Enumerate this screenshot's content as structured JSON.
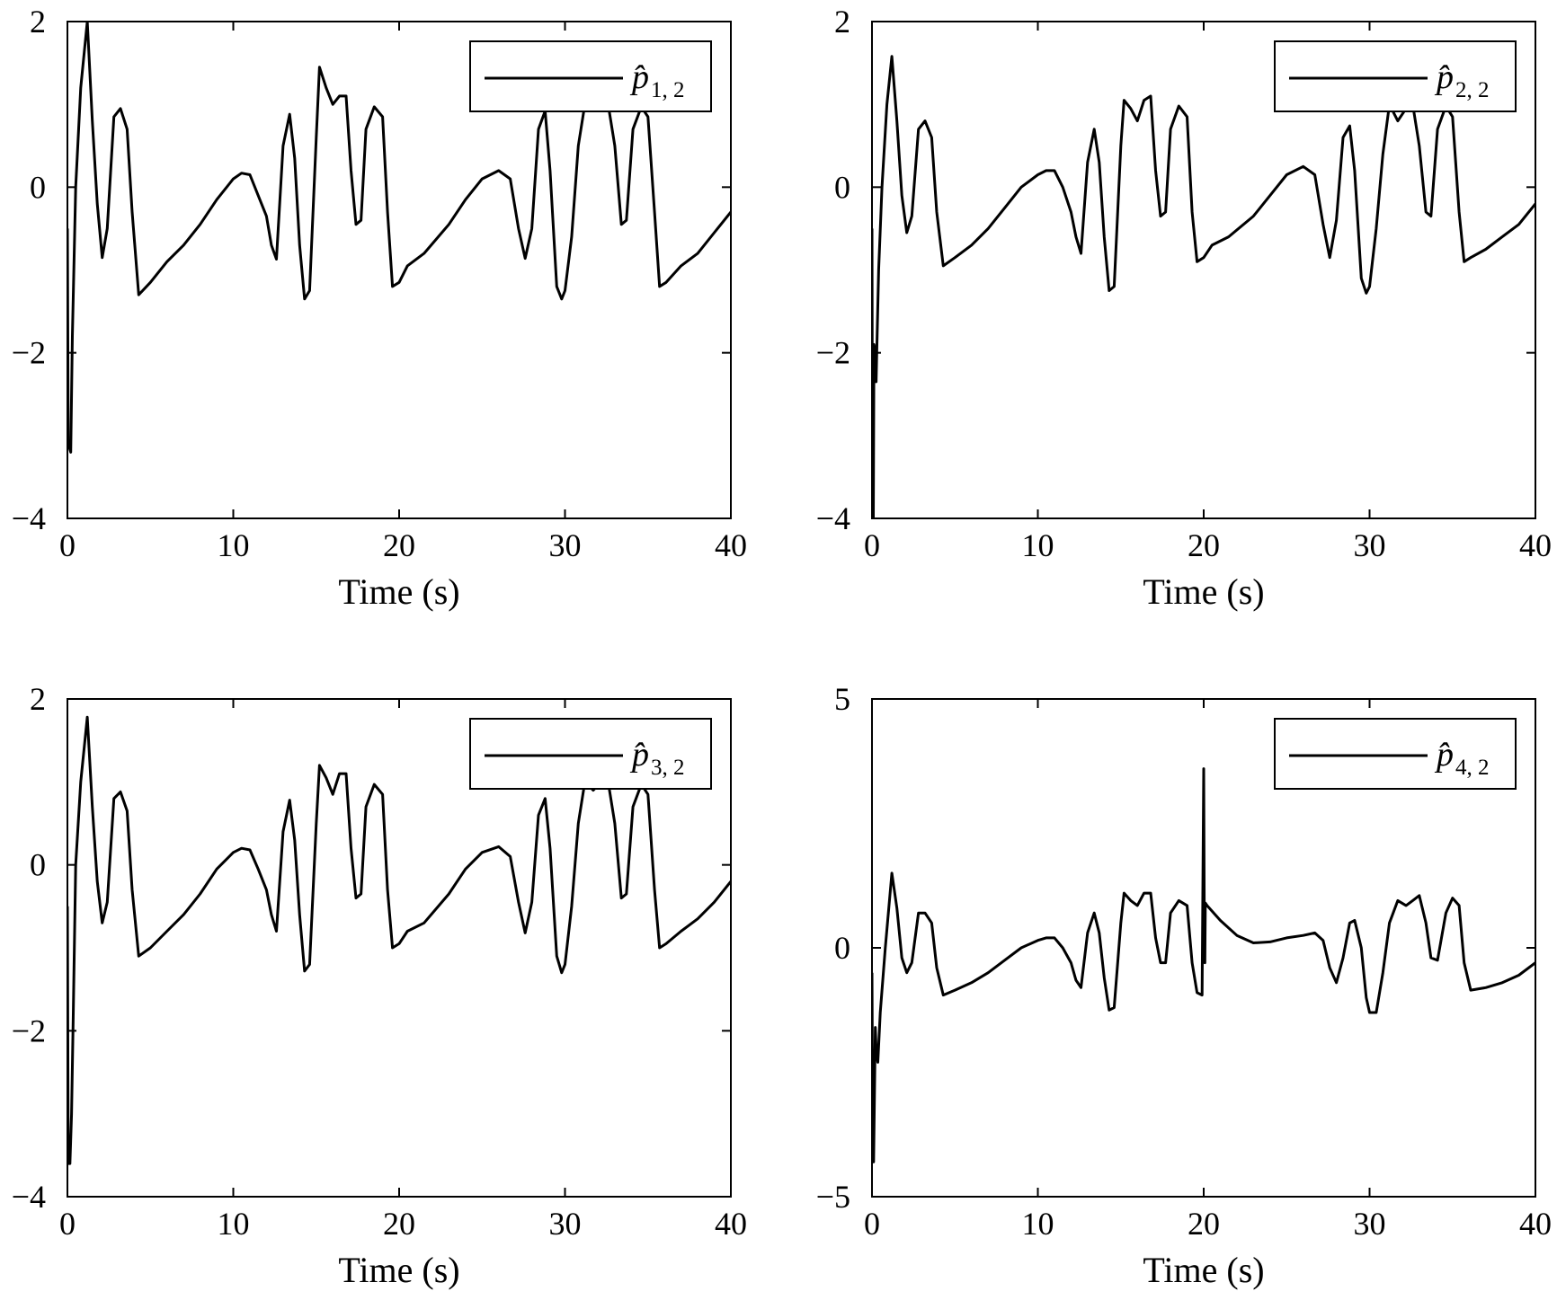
{
  "chart_data": [
    {
      "type": "line",
      "xlabel": "Time (s)",
      "xlim": [
        0,
        40
      ],
      "ylim": [
        -4,
        2
      ],
      "xticks": [
        "0",
        "10",
        "20",
        "30",
        "40"
      ],
      "yticks": [
        "−4",
        "−2",
        "0",
        "2"
      ],
      "legend_placement": "top-right",
      "series": [
        {
          "name": "p̂ 1, 2",
          "legend_symbol": "p̂",
          "legend_subscript": "1, 2",
          "color": "#000000",
          "x": [
            0,
            0.05,
            0.2,
            0.3,
            0.5,
            0.8,
            1.2,
            1.5,
            1.8,
            2.1,
            2.4,
            2.8,
            3.2,
            3.6,
            3.9,
            4.3,
            5,
            6,
            7,
            8,
            9,
            10,
            10.5,
            11,
            11.5,
            12,
            12.3,
            12.6,
            13.0,
            13.4,
            13.7,
            14.0,
            14.3,
            14.6,
            15.0,
            15.2,
            15.6,
            16.0,
            16.4,
            16.8,
            17.1,
            17.4,
            17.7,
            18.0,
            18.5,
            19.0,
            19.3,
            19.6,
            20.0,
            20.5,
            21.5,
            23,
            24,
            25,
            26,
            26.7,
            27.2,
            27.6,
            28.0,
            28.4,
            28.8,
            29.1,
            29.5,
            29.8,
            30.0,
            30.4,
            30.8,
            31.2,
            31.7,
            32.2,
            32.6,
            33.0,
            33.4,
            33.7,
            34.1,
            34.6,
            35.0,
            35.4,
            35.7,
            36.1,
            37,
            38,
            39,
            40
          ],
          "y": [
            -0.5,
            -3.1,
            -3.2,
            -1.8,
            0,
            1.2,
            2.0,
            0.8,
            -0.2,
            -0.85,
            -0.5,
            0.85,
            0.95,
            0.7,
            -0.3,
            -1.3,
            -1.15,
            -0.9,
            -0.7,
            -0.45,
            -0.15,
            0.1,
            0.17,
            0.15,
            -0.1,
            -0.35,
            -0.7,
            -0.87,
            0.5,
            0.88,
            0.35,
            -0.7,
            -1.35,
            -1.25,
            0.6,
            1.45,
            1.2,
            1.0,
            1.1,
            1.1,
            0.2,
            -0.45,
            -0.4,
            0.7,
            0.97,
            0.85,
            -0.3,
            -1.2,
            -1.15,
            -0.95,
            -0.8,
            -0.45,
            -0.15,
            0.1,
            0.2,
            0.1,
            -0.5,
            -0.86,
            -0.5,
            0.7,
            0.92,
            0.2,
            -1.2,
            -1.35,
            -1.25,
            -0.6,
            0.5,
            1.0,
            1.0,
            1.0,
            1.0,
            0.5,
            -0.45,
            -0.4,
            0.7,
            0.97,
            0.85,
            -0.3,
            -1.2,
            -1.15,
            -0.95,
            -0.8,
            -0.55,
            -0.3
          ]
        }
      ]
    },
    {
      "type": "line",
      "xlabel": "Time (s)",
      "xlim": [
        0,
        40
      ],
      "ylim": [
        -4,
        2
      ],
      "xticks": [
        "0",
        "10",
        "20",
        "30",
        "40"
      ],
      "yticks": [
        "−4",
        "−2",
        "0",
        "2"
      ],
      "legend_placement": "top-right",
      "series": [
        {
          "name": "p̂ 2, 2",
          "legend_symbol": "p̂",
          "legend_subscript": "2, 2",
          "color": "#000000",
          "x": [
            0,
            0.03,
            0.08,
            0.12,
            0.2,
            0.25,
            0.3,
            0.4,
            0.6,
            0.9,
            1.2,
            1.5,
            1.8,
            2.1,
            2.4,
            2.8,
            3.2,
            3.6,
            3.9,
            4.3,
            5,
            6,
            7,
            8,
            9,
            10,
            10.5,
            11,
            11.5,
            12,
            12.3,
            12.6,
            13.0,
            13.4,
            13.7,
            14.0,
            14.3,
            14.6,
            15.0,
            15.2,
            15.6,
            16.0,
            16.4,
            16.8,
            17.1,
            17.4,
            17.7,
            18.0,
            18.5,
            19.0,
            19.3,
            19.6,
            20.0,
            20.5,
            21.5,
            23,
            24,
            25,
            26,
            26.7,
            27.2,
            27.6,
            28.0,
            28.4,
            28.8,
            29.1,
            29.5,
            29.8,
            30.0,
            30.4,
            30.8,
            31.2,
            31.7,
            32.2,
            32.6,
            33.0,
            33.4,
            33.7,
            34.1,
            34.6,
            35.0,
            35.4,
            35.7,
            36.1,
            37,
            38,
            39,
            40
          ],
          "y": [
            -0.5,
            -4.0,
            -4.0,
            -1.9,
            -2.0,
            -2.35,
            -1.9,
            -1.0,
            0,
            1.0,
            1.58,
            0.8,
            -0.1,
            -0.55,
            -0.35,
            0.7,
            0.8,
            0.6,
            -0.3,
            -0.95,
            -0.85,
            -0.7,
            -0.5,
            -0.25,
            0,
            0.15,
            0.2,
            0.2,
            0,
            -0.3,
            -0.6,
            -0.8,
            0.3,
            0.7,
            0.3,
            -0.6,
            -1.25,
            -1.2,
            0.5,
            1.05,
            0.95,
            0.8,
            1.05,
            1.1,
            0.2,
            -0.35,
            -0.3,
            0.7,
            0.98,
            0.85,
            -0.3,
            -0.9,
            -0.85,
            -0.7,
            -0.6,
            -0.35,
            -0.1,
            0.15,
            0.25,
            0.15,
            -0.45,
            -0.85,
            -0.4,
            0.6,
            0.74,
            0.2,
            -1.1,
            -1.28,
            -1.2,
            -0.5,
            0.4,
            1.0,
            0.8,
            0.95,
            1.0,
            0.5,
            -0.3,
            -0.35,
            0.7,
            0.98,
            0.85,
            -0.3,
            -0.9,
            -0.85,
            -0.75,
            -0.6,
            -0.45,
            -0.2
          ]
        }
      ]
    },
    {
      "type": "line",
      "xlabel": "Time (s)",
      "xlim": [
        0,
        40
      ],
      "ylim": [
        -4,
        2
      ],
      "xticks": [
        "0",
        "10",
        "20",
        "30",
        "40"
      ],
      "yticks": [
        "−4",
        "−2",
        "0",
        "2"
      ],
      "legend_placement": "top-right",
      "series": [
        {
          "name": "p̂ 3, 2",
          "legend_symbol": "p̂",
          "legend_subscript": "3, 2",
          "color": "#000000",
          "x": [
            0,
            0.05,
            0.15,
            0.25,
            0.35,
            0.5,
            0.8,
            1.2,
            1.5,
            1.8,
            2.1,
            2.4,
            2.8,
            3.2,
            3.6,
            3.9,
            4.3,
            5,
            6,
            7,
            8,
            9,
            10,
            10.5,
            11,
            11.5,
            12,
            12.3,
            12.6,
            13.0,
            13.4,
            13.7,
            14.0,
            14.3,
            14.6,
            15.0,
            15.2,
            15.6,
            16.0,
            16.4,
            16.8,
            17.1,
            17.4,
            17.7,
            18.0,
            18.5,
            19.0,
            19.3,
            19.6,
            20.0,
            20.5,
            21.5,
            23,
            24,
            25,
            26,
            26.7,
            27.2,
            27.6,
            28.0,
            28.4,
            28.8,
            29.1,
            29.5,
            29.8,
            30.0,
            30.4,
            30.8,
            31.2,
            31.7,
            32.2,
            32.6,
            33.0,
            33.4,
            33.7,
            34.1,
            34.6,
            35.0,
            35.4,
            35.7,
            36.1,
            37,
            38,
            39,
            40
          ],
          "y": [
            -0.5,
            -3.6,
            -3.6,
            -3.0,
            -1.8,
            0,
            1.0,
            1.78,
            0.7,
            -0.2,
            -0.7,
            -0.45,
            0.8,
            0.88,
            0.65,
            -0.3,
            -1.1,
            -1.0,
            -0.8,
            -0.6,
            -0.35,
            -0.05,
            0.15,
            0.2,
            0.18,
            -0.05,
            -0.3,
            -0.6,
            -0.8,
            0.4,
            0.78,
            0.3,
            -0.6,
            -1.28,
            -1.2,
            0.5,
            1.2,
            1.05,
            0.85,
            1.1,
            1.1,
            0.2,
            -0.4,
            -0.35,
            0.7,
            0.97,
            0.85,
            -0.3,
            -1.0,
            -0.95,
            -0.8,
            -0.7,
            -0.35,
            -0.05,
            0.15,
            0.22,
            0.1,
            -0.45,
            -0.82,
            -0.45,
            0.6,
            0.8,
            0.2,
            -1.1,
            -1.3,
            -1.2,
            -0.5,
            0.5,
            1.0,
            0.9,
            1.0,
            1.0,
            0.5,
            -0.4,
            -0.35,
            0.7,
            0.97,
            0.85,
            -0.3,
            -1.0,
            -0.95,
            -0.8,
            -0.65,
            -0.45,
            -0.2
          ]
        }
      ]
    },
    {
      "type": "line",
      "xlabel": "Time (s)",
      "xlim": [
        0,
        40
      ],
      "ylim": [
        -5,
        5
      ],
      "xticks": [
        "0",
        "10",
        "20",
        "30",
        "40"
      ],
      "yticks": [
        "−5",
        "0",
        "5"
      ],
      "legend_placement": "top-right",
      "series": [
        {
          "name": "p̂ 4, 2",
          "legend_symbol": "p̂",
          "legend_subscript": "4, 2",
          "color": "#000000",
          "x": [
            0,
            0.05,
            0.1,
            0.2,
            0.25,
            0.35,
            0.5,
            0.8,
            1.2,
            1.5,
            1.8,
            2.1,
            2.4,
            2.8,
            3.2,
            3.6,
            3.9,
            4.3,
            5,
            6,
            7,
            8,
            9,
            10,
            10.5,
            11,
            11.5,
            12,
            12.3,
            12.6,
            13.0,
            13.4,
            13.7,
            14.0,
            14.3,
            14.6,
            15.0,
            15.2,
            15.6,
            16.0,
            16.4,
            16.8,
            17.1,
            17.4,
            17.7,
            18.0,
            18.5,
            19.0,
            19.3,
            19.6,
            19.9,
            20.0,
            20.03,
            20.07,
            20.1,
            20.2,
            21,
            22,
            23,
            24,
            25,
            26,
            26.7,
            27.2,
            27.6,
            28.0,
            28.4,
            28.8,
            29.1,
            29.5,
            29.8,
            30.0,
            30.4,
            30.8,
            31.2,
            31.7,
            32.2,
            32.6,
            33.0,
            33.4,
            33.7,
            34.1,
            34.6,
            35.0,
            35.4,
            35.7,
            36.1,
            37,
            38,
            39,
            40
          ],
          "y": [
            -0.5,
            -4.3,
            -4.3,
            -1.6,
            -2.0,
            -2.3,
            -1.3,
            0,
            1.5,
            0.8,
            -0.2,
            -0.5,
            -0.3,
            0.7,
            0.7,
            0.5,
            -0.4,
            -0.95,
            -0.85,
            -0.7,
            -0.5,
            -0.25,
            0,
            0.15,
            0.2,
            0.2,
            0,
            -0.3,
            -0.65,
            -0.8,
            0.3,
            0.7,
            0.3,
            -0.6,
            -1.25,
            -1.2,
            0.5,
            1.1,
            0.95,
            0.85,
            1.1,
            1.1,
            0.2,
            -0.3,
            -0.3,
            0.7,
            0.95,
            0.85,
            -0.3,
            -0.9,
            -0.95,
            3.6,
            0.8,
            -0.3,
            0.9,
            0.85,
            0.55,
            0.25,
            0.1,
            0.12,
            0.2,
            0.25,
            0.3,
            0.15,
            -0.4,
            -0.7,
            -0.2,
            0.5,
            0.55,
            0,
            -1.0,
            -1.3,
            -1.3,
            -0.5,
            0.5,
            0.95,
            0.85,
            0.95,
            1.05,
            0.5,
            -0.2,
            -0.25,
            0.7,
            1.0,
            0.85,
            -0.3,
            -0.85,
            -0.8,
            -0.7,
            -0.55,
            -0.3
          ]
        }
      ]
    }
  ]
}
